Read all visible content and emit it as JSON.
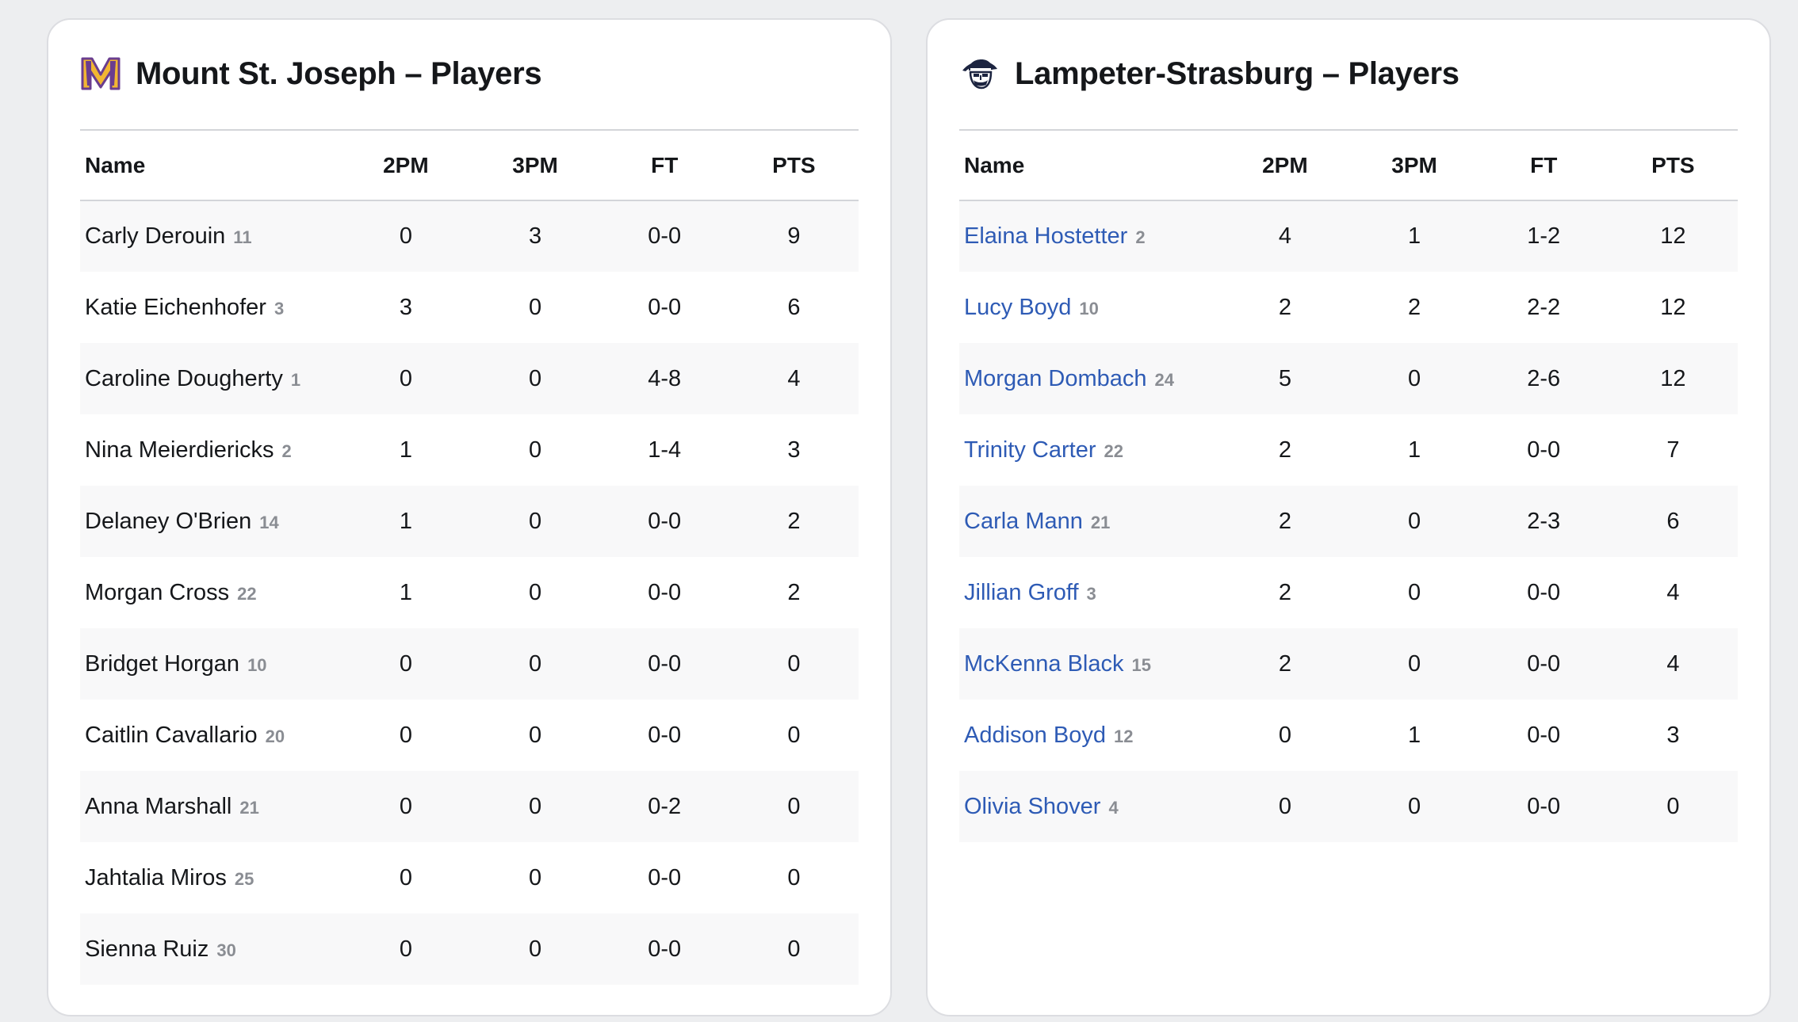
{
  "teams": [
    {
      "title": "Mount St. Joseph – Players",
      "logo_icon": "mount-st-joseph-m-logo-icon",
      "colors": {
        "logo_primary": "#6a3d8f",
        "logo_secondary": "#f2b632",
        "player_name": "#15171a"
      },
      "columns": [
        "Name",
        "2PM",
        "3PM",
        "FT",
        "PTS"
      ],
      "players": [
        {
          "name": "Carly Derouin",
          "number": "11",
          "twopm": "0",
          "threepm": "3",
          "ft": "0-0",
          "pts": "9"
        },
        {
          "name": "Katie Eichenhofer",
          "number": "3",
          "twopm": "3",
          "threepm": "0",
          "ft": "0-0",
          "pts": "6"
        },
        {
          "name": "Caroline Dougherty",
          "number": "1",
          "twopm": "0",
          "threepm": "0",
          "ft": "4-8",
          "pts": "4"
        },
        {
          "name": "Nina Meierdiericks",
          "number": "2",
          "twopm": "1",
          "threepm": "0",
          "ft": "1-4",
          "pts": "3"
        },
        {
          "name": "Delaney O'Brien",
          "number": "14",
          "twopm": "1",
          "threepm": "0",
          "ft": "0-0",
          "pts": "2"
        },
        {
          "name": "Morgan Cross",
          "number": "22",
          "twopm": "1",
          "threepm": "0",
          "ft": "0-0",
          "pts": "2"
        },
        {
          "name": "Bridget Horgan",
          "number": "10",
          "twopm": "0",
          "threepm": "0",
          "ft": "0-0",
          "pts": "0"
        },
        {
          "name": "Caitlin Cavallario",
          "number": "20",
          "twopm": "0",
          "threepm": "0",
          "ft": "0-0",
          "pts": "0"
        },
        {
          "name": "Anna Marshall",
          "number": "21",
          "twopm": "0",
          "threepm": "0",
          "ft": "0-2",
          "pts": "0"
        },
        {
          "name": "Jahtalia Miros",
          "number": "25",
          "twopm": "0",
          "threepm": "0",
          "ft": "0-0",
          "pts": "0"
        },
        {
          "name": "Sienna Ruiz",
          "number": "30",
          "twopm": "0",
          "threepm": "0",
          "ft": "0-0",
          "pts": "0"
        }
      ]
    },
    {
      "title": "Lampeter-Strasburg – Players",
      "logo_icon": "pioneer-mascot-logo-icon",
      "colors": {
        "logo_primary": "#1c2440",
        "player_name": "#2e5bb5"
      },
      "columns": [
        "Name",
        "2PM",
        "3PM",
        "FT",
        "PTS"
      ],
      "players": [
        {
          "name": "Elaina Hostetter",
          "number": "2",
          "twopm": "4",
          "threepm": "1",
          "ft": "1-2",
          "pts": "12"
        },
        {
          "name": "Lucy Boyd",
          "number": "10",
          "twopm": "2",
          "threepm": "2",
          "ft": "2-2",
          "pts": "12"
        },
        {
          "name": "Morgan Dombach",
          "number": "24",
          "twopm": "5",
          "threepm": "0",
          "ft": "2-6",
          "pts": "12"
        },
        {
          "name": "Trinity Carter",
          "number": "22",
          "twopm": "2",
          "threepm": "1",
          "ft": "0-0",
          "pts": "7"
        },
        {
          "name": "Carla Mann",
          "number": "21",
          "twopm": "2",
          "threepm": "0",
          "ft": "2-3",
          "pts": "6"
        },
        {
          "name": "Jillian Groff",
          "number": "3",
          "twopm": "2",
          "threepm": "0",
          "ft": "0-0",
          "pts": "4"
        },
        {
          "name": "McKenna Black",
          "number": "15",
          "twopm": "2",
          "threepm": "0",
          "ft": "0-0",
          "pts": "4"
        },
        {
          "name": "Addison Boyd",
          "number": "12",
          "twopm": "0",
          "threepm": "1",
          "ft": "0-0",
          "pts": "3"
        },
        {
          "name": "Olivia Shover",
          "number": "4",
          "twopm": "0",
          "threepm": "0",
          "ft": "0-0",
          "pts": "0"
        }
      ]
    }
  ]
}
